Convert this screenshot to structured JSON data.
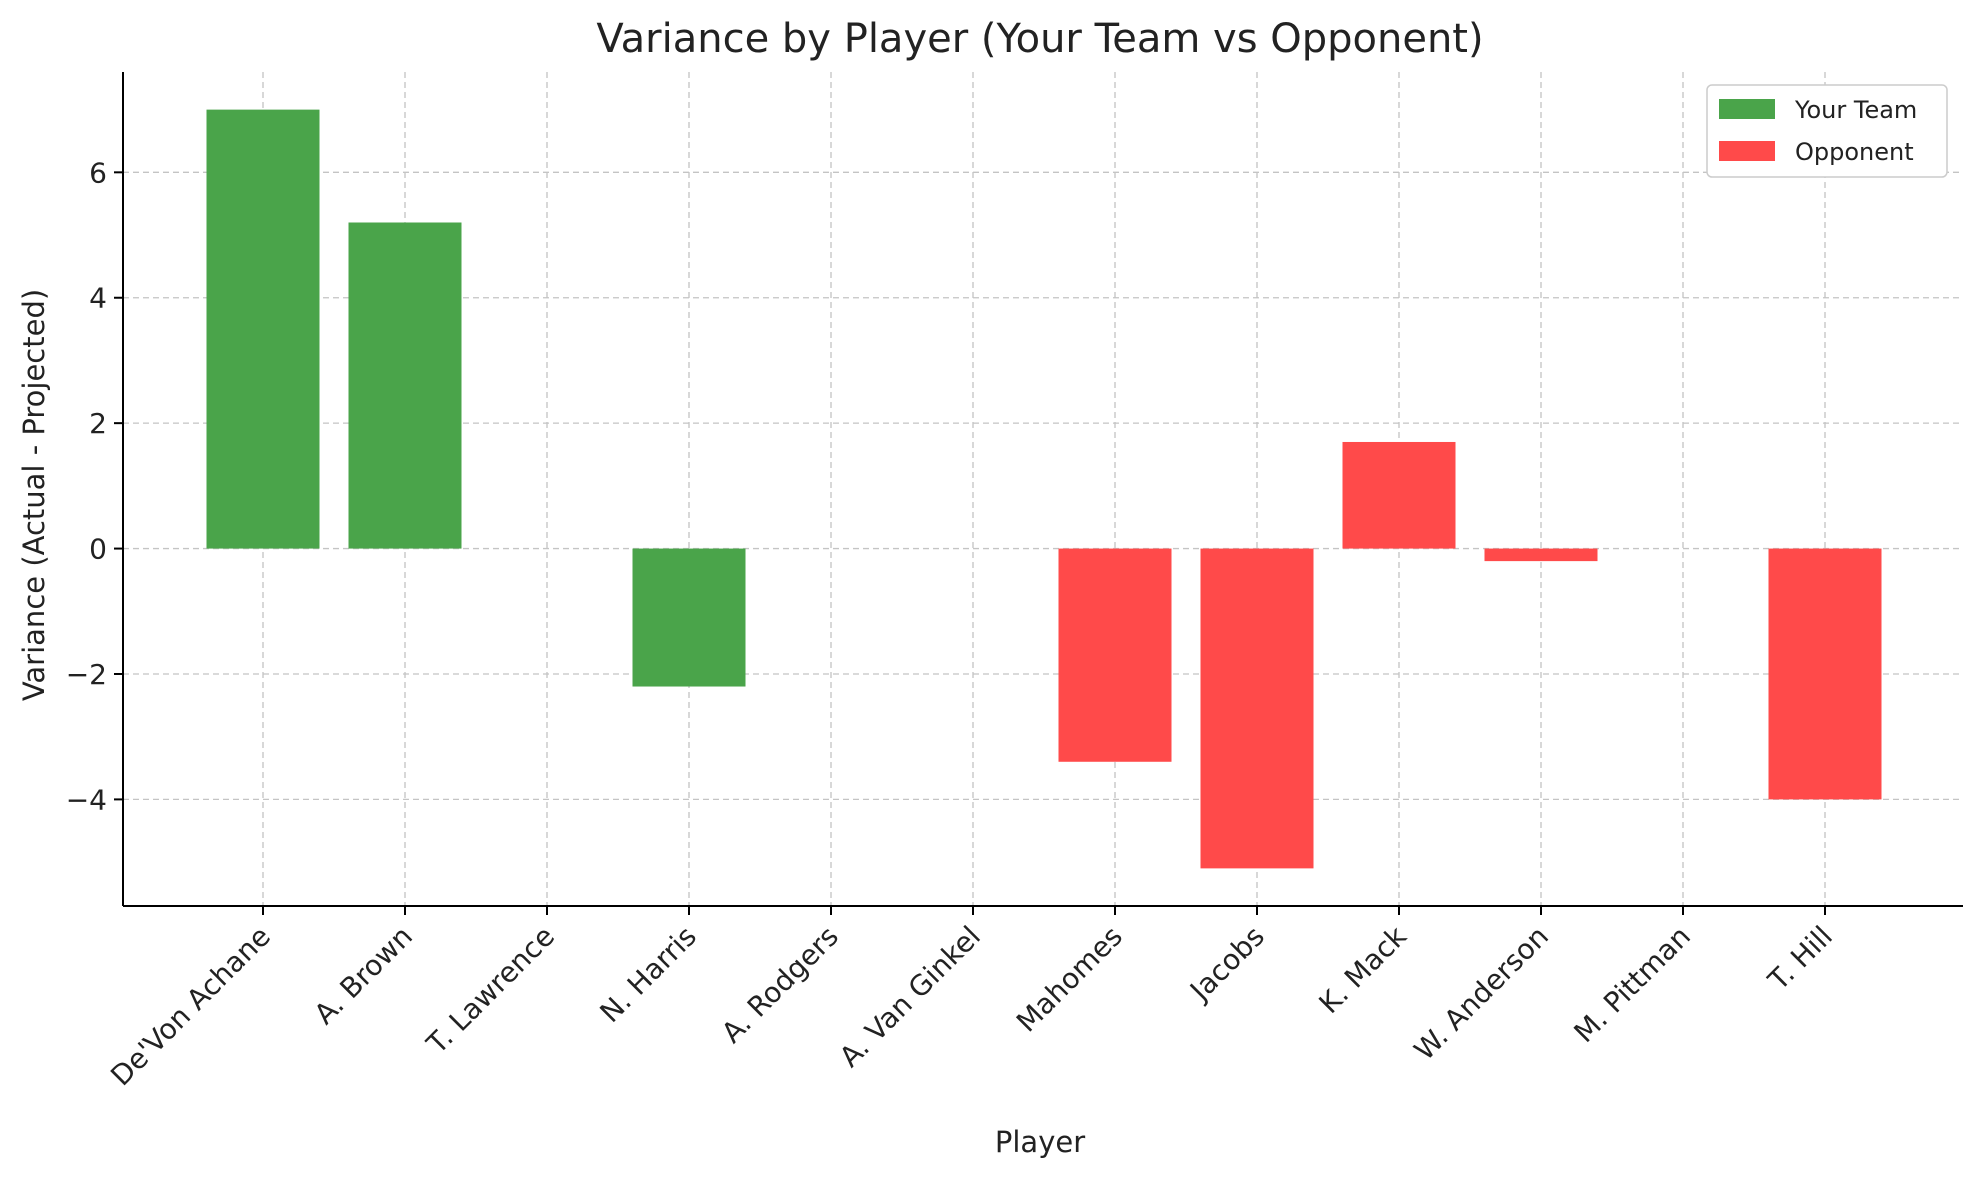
{
  "chart_data": {
    "type": "bar",
    "title": "Variance by Player (Your Team vs Opponent)",
    "xlabel": "Player",
    "ylabel": "Variance (Actual - Projected)",
    "categories": [
      "De'Von Achane",
      "A. Brown",
      "T. Lawrence",
      "N. Harris",
      "A. Rodgers",
      "A. Van Ginkel",
      "Mahomes",
      "Jacobs",
      "K. Mack",
      "W. Anderson",
      "M. Pittman",
      "T. Hill"
    ],
    "series": [
      {
        "name": "Your Team",
        "color": "#4aa44a",
        "values": [
          7.0,
          5.2,
          0.0,
          -2.2,
          null,
          null,
          null,
          null,
          null,
          null,
          null,
          null
        ]
      },
      {
        "name": "Opponent",
        "color": "#ff4a4a",
        "values": [
          null,
          null,
          null,
          null,
          0.0,
          0.0,
          -3.4,
          -5.1,
          1.7,
          -0.2,
          0.0,
          -4.0
        ]
      }
    ],
    "ylim": [
      -5.7,
      7.6
    ],
    "yticks": [
      -4,
      -2,
      0,
      2,
      4,
      6
    ],
    "grid": true,
    "legend_position": "top-right"
  }
}
